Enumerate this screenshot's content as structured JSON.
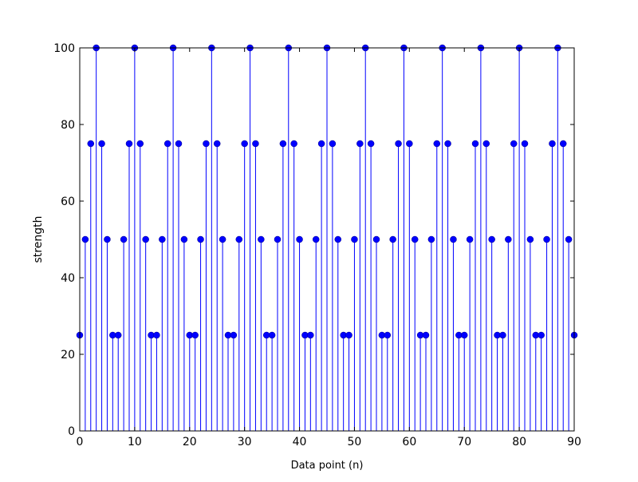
{
  "chart_data": {
    "type": "stem",
    "title": "",
    "xlabel": "Data point (n)",
    "ylabel": "strength",
    "xlim": [
      0,
      90
    ],
    "ylim": [
      0,
      100
    ],
    "xticks": [
      0,
      10,
      20,
      30,
      40,
      50,
      60,
      70,
      80,
      90
    ],
    "yticks": [
      0,
      20,
      40,
      60,
      80,
      100
    ],
    "grid": false,
    "color": "#0000ff",
    "x": [
      0,
      1,
      2,
      3,
      4,
      5,
      6,
      7,
      8,
      9,
      10,
      11,
      12,
      13,
      14,
      15,
      16,
      17,
      18,
      19,
      20,
      21,
      22,
      23,
      24,
      25,
      26,
      27,
      28,
      29,
      30,
      31,
      32,
      33,
      34,
      35,
      36,
      37,
      38,
      39,
      40,
      41,
      42,
      43,
      44,
      45,
      46,
      47,
      48,
      49,
      50,
      51,
      52,
      53,
      54,
      55,
      56,
      57,
      58,
      59,
      60,
      61,
      62,
      63,
      64,
      65,
      66,
      67,
      68,
      69,
      70,
      71,
      72,
      73,
      74,
      75,
      76,
      77,
      78,
      79,
      80,
      81,
      82,
      83,
      84,
      85,
      86,
      87,
      88,
      89,
      90
    ],
    "y": [
      25,
      50,
      75,
      100,
      75,
      50,
      25,
      25,
      50,
      75,
      100,
      75,
      50,
      25,
      25,
      50,
      75,
      100,
      75,
      50,
      25,
      25,
      50,
      75,
      100,
      75,
      50,
      25,
      25,
      50,
      75,
      100,
      75,
      50,
      25,
      25,
      50,
      75,
      100,
      75,
      50,
      25,
      25,
      50,
      75,
      100,
      75,
      50,
      25,
      25,
      50,
      75,
      100,
      75,
      50,
      25,
      25,
      50,
      75,
      100,
      75,
      50,
      25,
      25,
      50,
      75,
      100,
      75,
      50,
      25,
      25,
      50,
      75,
      100,
      75,
      50,
      25,
      25,
      50,
      75,
      100,
      75,
      50,
      25,
      25,
      50,
      75,
      100,
      75,
      50,
      25
    ]
  }
}
